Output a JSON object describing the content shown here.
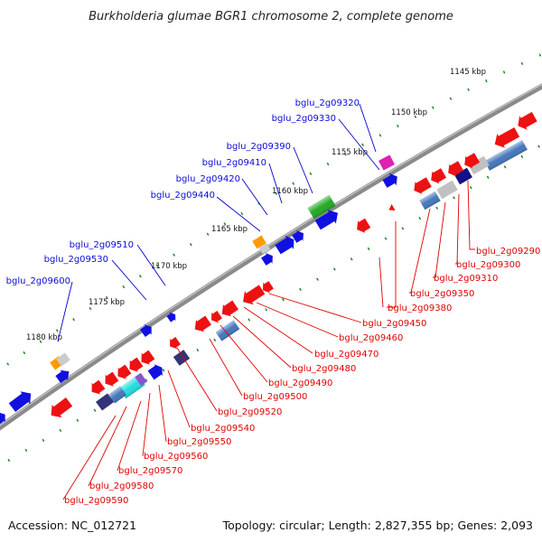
{
  "title": "Burkholderia glumae BGR1 chromosome 2, complete genome",
  "footer": {
    "accession": "Accession: NC_012721",
    "summary": "Topology: circular; Length: 2,827,355 bp; Genes: 2,093"
  },
  "ticks": [
    "1145 kbp",
    "1150 kbp",
    "1155 kbp",
    "1160 kbp",
    "1165 kbp",
    "1170 kbp",
    "1175 kbp",
    "1180 kbp"
  ],
  "blue_labels": [
    "bglu_2g09320",
    "bglu_2g09330",
    "bglu_2g09390",
    "bglu_2g09410",
    "bglu_2g09420",
    "bglu_2g09440",
    "bglu_2g09510",
    "bglu_2g09530",
    "bglu_2g09600"
  ],
  "red_labels": [
    "bglu_2g09290",
    "bglu_2g09300",
    "bglu_2g09310",
    "bglu_2g09350",
    "bglu_2g09380",
    "bglu_2g09450",
    "bglu_2g09460",
    "bglu_2g09470",
    "bglu_2g09480",
    "bglu_2g09490",
    "bglu_2g09500",
    "bglu_2g09520",
    "bglu_2g09540",
    "bglu_2g09550",
    "bglu_2g09560",
    "bglu_2g09570",
    "bglu_2g09580",
    "bglu_2g09590"
  ],
  "colors": {
    "forward_gene": "#1010e0",
    "reverse_gene": "#ee1111",
    "backbone": "#808080",
    "tick_dots": "#228822",
    "blue_label": "#0a0ad8",
    "red_label": "#e00000"
  }
}
